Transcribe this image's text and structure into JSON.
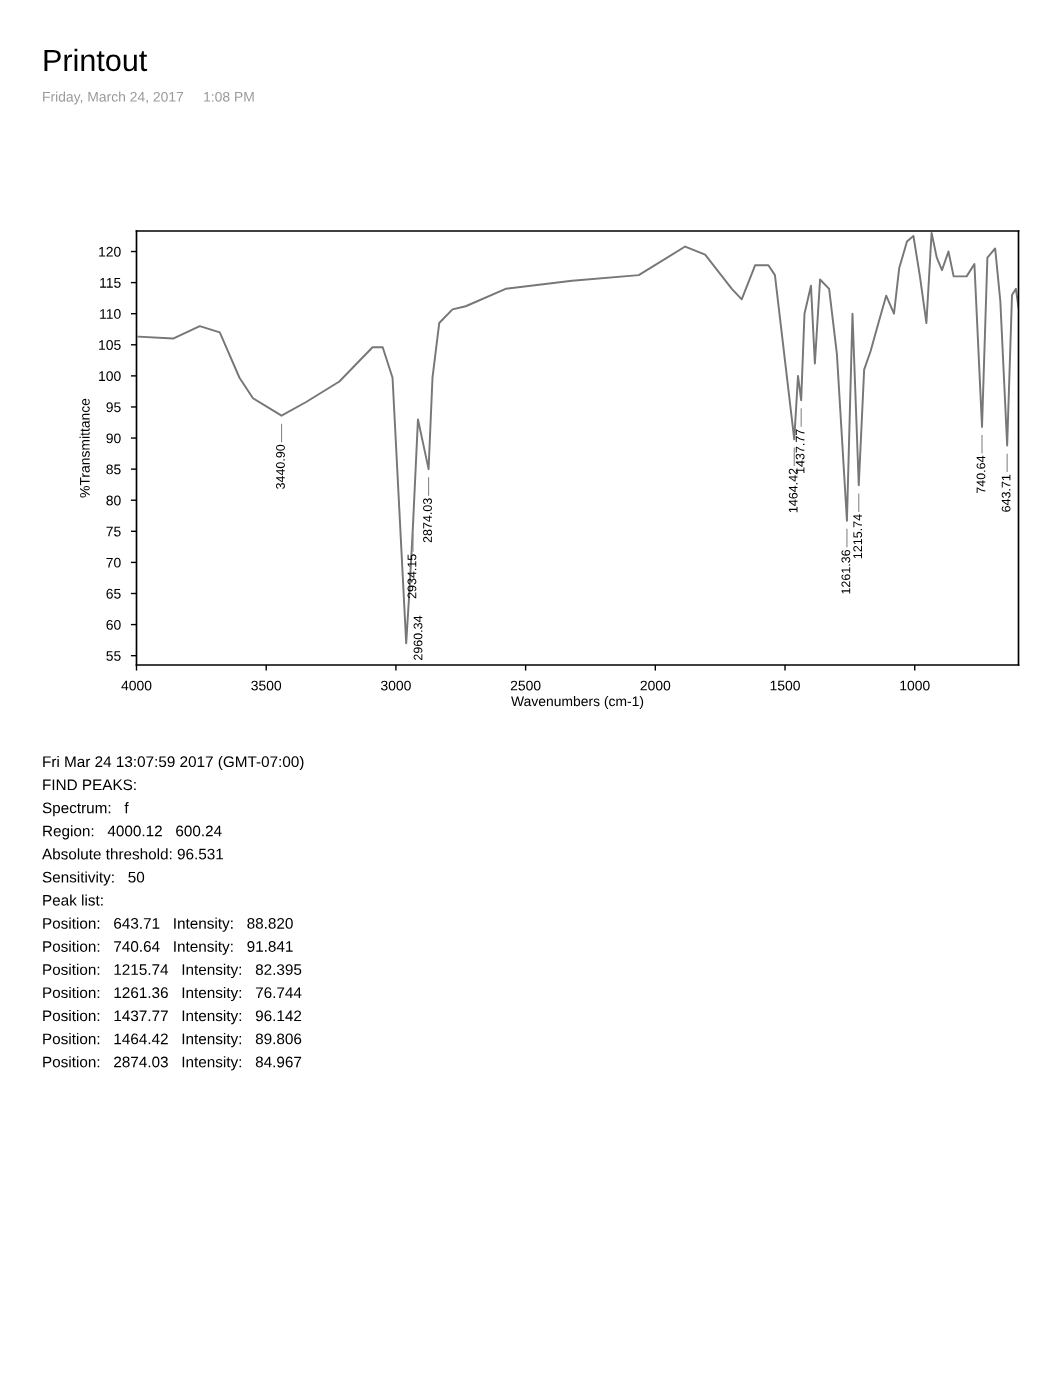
{
  "chart_data": {
    "type": "line",
    "title": "Printout",
    "subtitle": "Friday, March 24, 2017     1:08 PM",
    "xlabel": "Wavenumbers (cm-1)",
    "ylabel": "%Transmittance",
    "xlim": [
      4000,
      600
    ],
    "ylim": [
      53.5,
      123.3
    ],
    "xticks": [
      4000,
      3500,
      3000,
      2500,
      2000,
      1500,
      1000
    ],
    "yticks": [
      55,
      60,
      65,
      70,
      75,
      80,
      85,
      90,
      95,
      100,
      105,
      110,
      115,
      120
    ],
    "grid": false,
    "legend": false,
    "marker": "none",
    "line_style": "solid",
    "series": [
      {
        "color": "#777777",
        "x": [
          3992,
          3859,
          3756,
          3679,
          3603,
          3551,
          3440.9,
          3346,
          3218,
          3090,
          3051,
          3013,
          2960.34,
          2947,
          2934.15,
          2915,
          2874.03,
          2859,
          2833,
          2782,
          2731,
          2577,
          2321,
          2064,
          1885,
          1808,
          1705,
          1667,
          1615,
          1564,
          1539,
          1464.42,
          1450,
          1437.77,
          1425,
          1400,
          1385,
          1365,
          1330,
          1300,
          1261.36,
          1240,
          1215.74,
          1195,
          1170,
          1140,
          1110,
          1080,
          1060,
          1030,
          1005,
          980,
          955,
          935,
          915,
          895,
          870,
          850,
          800,
          770,
          740.64,
          720,
          690,
          670,
          643.71,
          625,
          610,
          600
        ],
        "values": [
          106.3,
          106,
          108,
          107,
          99.7,
          96.4,
          93.6,
          95.8,
          99.1,
          104.6,
          104.6,
          99.7,
          57,
          66,
          76,
          93,
          85.0,
          99.7,
          108.5,
          110.7,
          111.2,
          114,
          115.3,
          116.2,
          120.8,
          119.5,
          114,
          112.3,
          117.8,
          117.8,
          116.2,
          89.8,
          100,
          96.1,
          110,
          114.5,
          102,
          115.5,
          114,
          103.5,
          76.7,
          110,
          82.4,
          101,
          104,
          108.5,
          112.9,
          110,
          117.3,
          121.6,
          122.5,
          116,
          108.5,
          123,
          119,
          117,
          120,
          116,
          116,
          118,
          91.8,
          119,
          120.5,
          112,
          88.8,
          113,
          114,
          111
        ]
      }
    ],
    "annotations": [
      {
        "text": "3440.90",
        "x": 3440.9,
        "y": 93.6
      },
      {
        "text": "2960.34",
        "x": 2960.34,
        "y": 57
      },
      {
        "text": "2934.15",
        "x": 2934.15,
        "y": 76
      },
      {
        "text": "2874.03",
        "x": 2874.03,
        "y": 85.0
      },
      {
        "text": "1464.42",
        "x": 1464.42,
        "y": 89.8
      },
      {
        "text": "1437.77",
        "x": 1437.77,
        "y": 96.1
      },
      {
        "text": "1261.36",
        "x": 1261.36,
        "y": 76.7
      },
      {
        "text": "1215.74",
        "x": 1215.74,
        "y": 82.4
      },
      {
        "text": "740.64",
        "x": 740.64,
        "y": 91.8
      },
      {
        "text": "643.71",
        "x": 643.71,
        "y": 88.8
      },
      "Fri Mar 24 13:07:59 2017 (GMT-07:00)",
      "FIND PEAKS:",
      "Spectrum:   f",
      "Region:   4000.12   600.24",
      "Absolute threshold: 96.531",
      "Sensitivity:   50",
      "Peak list:",
      "Position:   643.71   Intensity:   88.820",
      "Position:   740.64   Intensity:   91.841",
      "Position:   1215.74   Intensity:   82.395",
      "Position:   1261.36   Intensity:   76.744",
      "Position:   1437.77   Intensity:   96.142",
      "Position:   1464.42   Intensity:   89.806",
      "Position:   2874.03   Intensity:   84.967"
    ]
  }
}
